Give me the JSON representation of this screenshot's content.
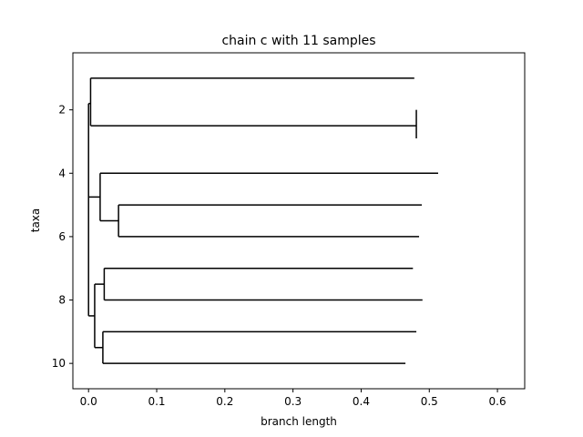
{
  "chart_data": {
    "type": "dendrogram",
    "title": "chain c with 11 samples",
    "xlabel": "branch length",
    "ylabel": "taxa",
    "xlim": [
      -0.023,
      0.64
    ],
    "ylim": [
      10.8,
      0.2
    ],
    "xticks": [
      0.0,
      0.1,
      0.2,
      0.3,
      0.4,
      0.5,
      0.6
    ],
    "xtick_labels": [
      "0.0",
      "0.1",
      "0.2",
      "0.3",
      "0.4",
      "0.5",
      "0.6"
    ],
    "yticks": [
      2,
      4,
      6,
      8,
      10
    ],
    "ytick_labels": [
      "2",
      "4",
      "6",
      "8",
      "10"
    ],
    "grid": false,
    "segments": [
      {
        "x0": 0.0,
        "y0": 1.8,
        "x1": 0.0,
        "y1": 8.5
      },
      {
        "x0": 0.0,
        "y0": 1.8,
        "x1": 0.003,
        "y1": 1.8
      },
      {
        "x0": 0.003,
        "y0": 1.0,
        "x1": 0.003,
        "y1": 2.5
      },
      {
        "x0": 0.003,
        "y0": 1.0,
        "x1": 0.478,
        "y1": 1.0
      },
      {
        "x0": 0.003,
        "y0": 2.5,
        "x1": 0.481,
        "y1": 2.5
      },
      {
        "x0": 0.481,
        "y0": 2.0,
        "x1": 0.481,
        "y1": 2.9
      },
      {
        "x0": 0.0,
        "y0": 4.75,
        "x1": 0.017,
        "y1": 4.75
      },
      {
        "x0": 0.017,
        "y0": 4.0,
        "x1": 0.017,
        "y1": 5.5
      },
      {
        "x0": 0.017,
        "y0": 4.0,
        "x1": 0.513,
        "y1": 4.0
      },
      {
        "x0": 0.017,
        "y0": 5.5,
        "x1": 0.044,
        "y1": 5.5
      },
      {
        "x0": 0.044,
        "y0": 5.0,
        "x1": 0.044,
        "y1": 6.0
      },
      {
        "x0": 0.044,
        "y0": 5.0,
        "x1": 0.489,
        "y1": 5.0
      },
      {
        "x0": 0.044,
        "y0": 6.0,
        "x1": 0.485,
        "y1": 6.0
      },
      {
        "x0": 0.0,
        "y0": 8.5,
        "x1": 0.009,
        "y1": 8.5
      },
      {
        "x0": 0.009,
        "y0": 7.5,
        "x1": 0.009,
        "y1": 9.5
      },
      {
        "x0": 0.009,
        "y0": 7.5,
        "x1": 0.023,
        "y1": 7.5
      },
      {
        "x0": 0.023,
        "y0": 7.0,
        "x1": 0.023,
        "y1": 8.0
      },
      {
        "x0": 0.023,
        "y0": 7.0,
        "x1": 0.476,
        "y1": 7.0
      },
      {
        "x0": 0.023,
        "y0": 8.0,
        "x1": 0.49,
        "y1": 8.0
      },
      {
        "x0": 0.009,
        "y0": 9.5,
        "x1": 0.021,
        "y1": 9.5
      },
      {
        "x0": 0.021,
        "y0": 9.0,
        "x1": 0.021,
        "y1": 10.0
      },
      {
        "x0": 0.021,
        "y0": 9.0,
        "x1": 0.481,
        "y1": 9.0
      },
      {
        "x0": 0.021,
        "y0": 10.0,
        "x1": 0.465,
        "y1": 10.0
      }
    ]
  }
}
